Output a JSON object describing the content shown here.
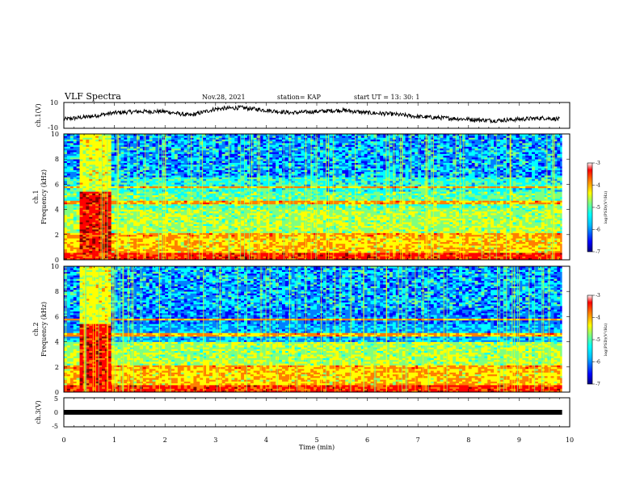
{
  "header": {
    "title": "VLF Spectra",
    "date": "Nov.28, 2021",
    "station": "station= KAP",
    "start": "start  UT =   13: 30: 1"
  },
  "chart_data": [
    {
      "type": "line",
      "name": "ch1-waveform",
      "ylabel": "ch.1(V)",
      "ylim": [
        -10,
        10
      ],
      "y_ticks": [
        "10",
        "-10"
      ],
      "x": [
        0.0,
        0.5,
        1.0,
        1.5,
        2.0,
        2.5,
        3.0,
        3.5,
        4.0,
        4.5,
        5.0,
        5.5,
        6.0,
        6.5,
        7.0,
        7.5,
        8.0,
        8.5,
        9.0,
        9.5,
        9.8
      ],
      "values": [
        -3,
        -1,
        2,
        3,
        3,
        0,
        5,
        6,
        4,
        2,
        3,
        4,
        2,
        1,
        -1,
        -2,
        -3,
        -4,
        -3,
        -2,
        -3
      ]
    },
    {
      "type": "heatmap",
      "name": "ch1-spectrogram",
      "ylabel_lines": [
        "ch.1",
        "Frequency (kHz)"
      ],
      "ylim": [
        0,
        10
      ],
      "y_ticks": [
        "0",
        "2",
        "4",
        "6",
        "8",
        "10"
      ],
      "colorbar": {
        "label": "log(PSD)(V²/Hz)",
        "range": [
          -7,
          -3
        ],
        "ticks": [
          "-3",
          "-4",
          "-5",
          "-6",
          "-7"
        ]
      }
    },
    {
      "type": "heatmap",
      "name": "ch2-spectrogram",
      "ylabel_lines": [
        "ch.2",
        "Frequency (kHz)"
      ],
      "ylim": [
        0,
        10
      ],
      "y_ticks": [
        "0",
        "2",
        "4",
        "6",
        "8",
        "10"
      ],
      "colorbar": {
        "label": "log(PSD)(V²/Hz)",
        "range": [
          -7,
          -3
        ],
        "ticks": [
          "-3",
          "-4",
          "-5",
          "-6",
          "-7"
        ]
      }
    },
    {
      "type": "line",
      "name": "ch3-signal",
      "ylabel": "ch.3(V)",
      "ylim": [
        -5,
        5
      ],
      "y_ticks": [
        "5",
        "0",
        "-5"
      ],
      "x": [
        0,
        9.85
      ],
      "values": [
        0,
        0
      ]
    }
  ],
  "x_axis": {
    "label": "Time  (min)",
    "xlim": [
      0,
      10
    ],
    "ticks": [
      "0",
      "1",
      "2",
      "3",
      "4",
      "5",
      "6",
      "7",
      "8",
      "9",
      "10"
    ]
  },
  "colors": {
    "jet": [
      "#00007f",
      "#0000ff",
      "#007fff",
      "#00ffff",
      "#7fff7f",
      "#ffff00",
      "#ff7f00",
      "#ff0000",
      "#7f0000"
    ],
    "axes": "#000000",
    "trace": "#000000"
  }
}
